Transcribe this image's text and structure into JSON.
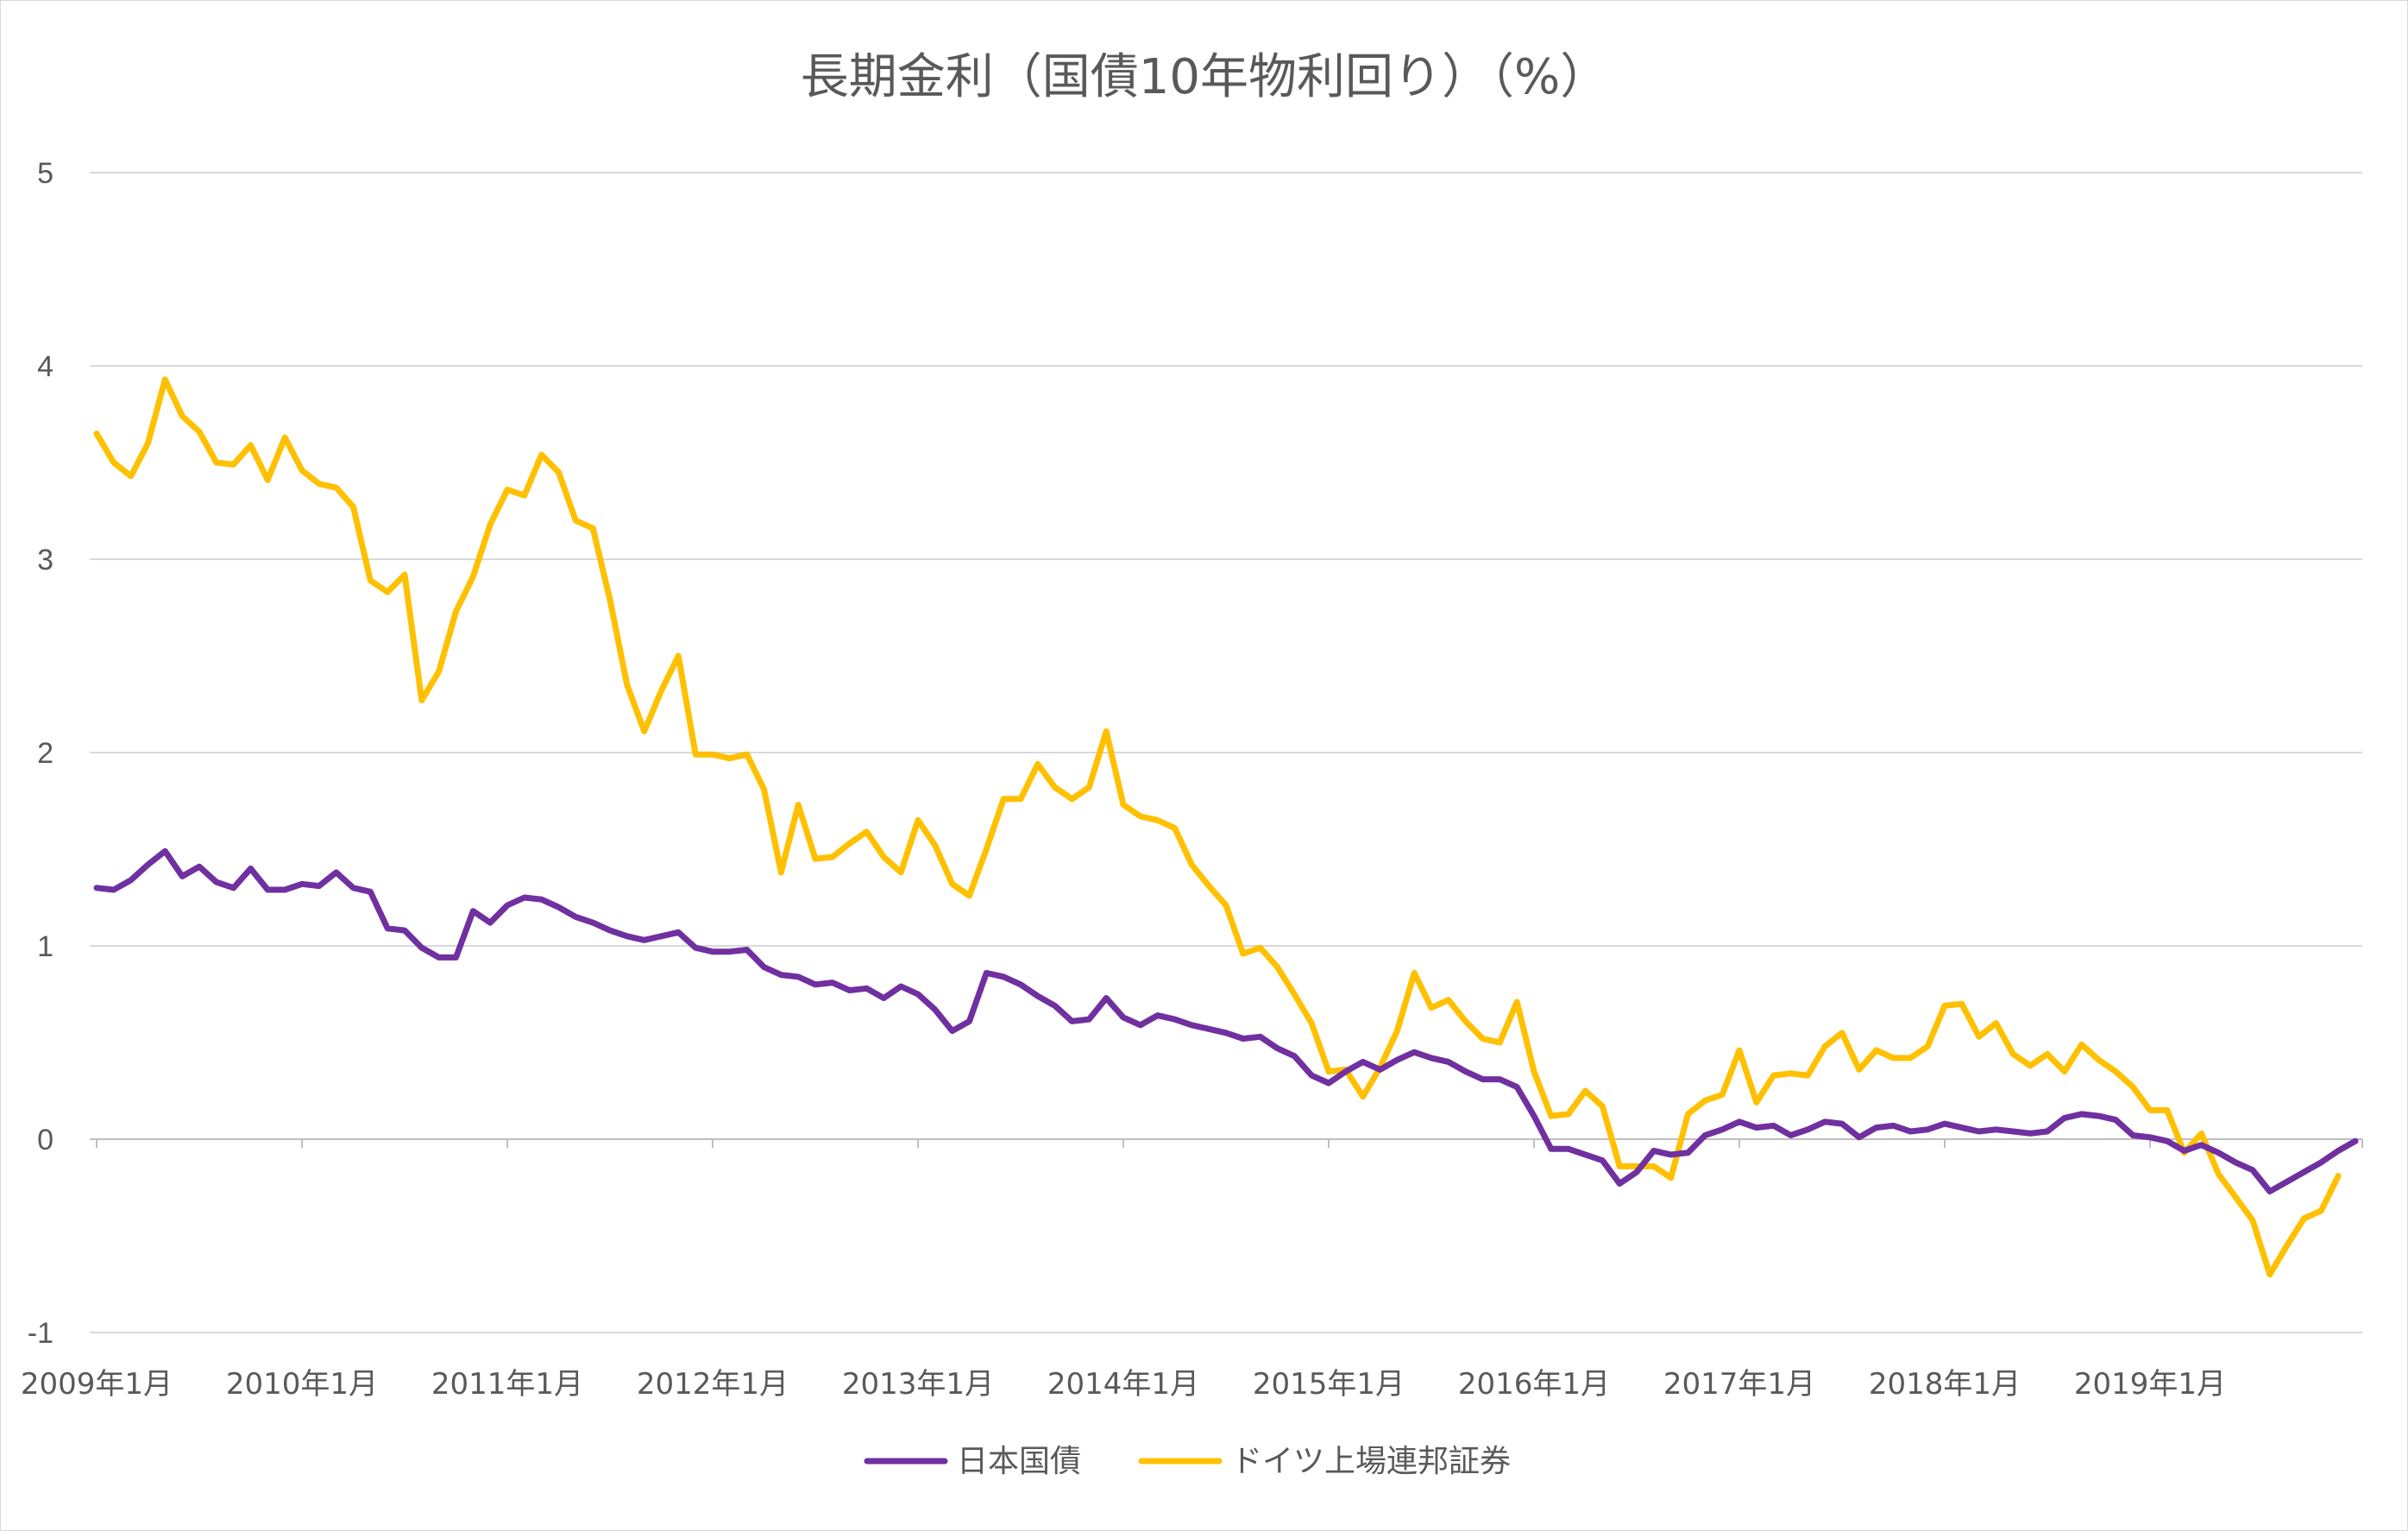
{
  "chart_data": {
    "type": "line",
    "title": "長期金利（国債10年物利回り）（%）",
    "xlabel": "",
    "ylabel": "",
    "ylim": [
      -1,
      5
    ],
    "y_ticks": [
      "5",
      "4",
      "3",
      "2",
      "1",
      "0",
      "-1"
    ],
    "x_ticks": [
      "2009年1月",
      "2010年1月",
      "2011年1月",
      "2012年1月",
      "2013年1月",
      "2014年1月",
      "2015年1月",
      "2016年1月",
      "2017年1月",
      "2018年1月",
      "2019年1月"
    ],
    "x_start": "2009年1月",
    "grid": true,
    "legend_position": "bottom",
    "series": [
      {
        "name": "日本国債",
        "color": "#7030a0",
        "values": [
          1.3,
          1.29,
          1.34,
          1.42,
          1.49,
          1.36,
          1.41,
          1.33,
          1.3,
          1.4,
          1.29,
          1.29,
          1.32,
          1.31,
          1.38,
          1.3,
          1.28,
          1.09,
          1.08,
          0.99,
          0.94,
          0.94,
          1.18,
          1.12,
          1.21,
          1.25,
          1.24,
          1.2,
          1.15,
          1.12,
          1.08,
          1.05,
          1.03,
          1.05,
          1.07,
          0.99,
          0.97,
          0.97,
          0.98,
          0.89,
          0.85,
          0.84,
          0.8,
          0.81,
          0.77,
          0.78,
          0.73,
          0.79,
          0.75,
          0.67,
          0.56,
          0.61,
          0.86,
          0.84,
          0.8,
          0.74,
          0.69,
          0.61,
          0.62,
          0.73,
          0.63,
          0.59,
          0.64,
          0.62,
          0.59,
          0.57,
          0.55,
          0.52,
          0.53,
          0.47,
          0.43,
          0.33,
          0.29,
          0.35,
          0.4,
          0.36,
          0.41,
          0.45,
          0.42,
          0.4,
          0.35,
          0.31,
          0.31,
          0.27,
          0.12,
          -0.05,
          -0.05,
          -0.08,
          -0.11,
          -0.23,
          -0.17,
          -0.06,
          -0.08,
          -0.07,
          0.02,
          0.05,
          0.09,
          0.06,
          0.07,
          0.02,
          0.05,
          0.09,
          0.08,
          0.01,
          0.06,
          0.07,
          0.04,
          0.05,
          0.08,
          0.06,
          0.04,
          0.05,
          0.04,
          0.03,
          0.04,
          0.11,
          0.13,
          0.12,
          0.1,
          0.02,
          0.01,
          -0.01,
          -0.06,
          -0.03,
          -0.07,
          -0.12,
          -0.16,
          -0.27,
          -0.22,
          -0.17,
          -0.12,
          -0.06,
          -0.01
        ]
      },
      {
        "name": "ドイツ上場連邦証券",
        "color": "#ffc000",
        "values": [
          3.65,
          3.5,
          3.43,
          3.6,
          3.93,
          3.74,
          3.66,
          3.5,
          3.49,
          3.59,
          3.41,
          3.63,
          3.46,
          3.39,
          3.37,
          3.27,
          2.89,
          2.83,
          2.92,
          2.27,
          2.42,
          2.73,
          2.91,
          3.18,
          3.36,
          3.33,
          3.54,
          3.45,
          3.2,
          3.16,
          2.79,
          2.35,
          2.11,
          2.32,
          2.5,
          1.99,
          1.99,
          1.97,
          1.99,
          1.81,
          1.38,
          1.73,
          1.45,
          1.46,
          1.53,
          1.59,
          1.46,
          1.38,
          1.65,
          1.52,
          1.32,
          1.26,
          1.5,
          1.76,
          1.76,
          1.94,
          1.82,
          1.76,
          1.82,
          2.11,
          1.73,
          1.67,
          1.65,
          1.61,
          1.42,
          1.31,
          1.21,
          0.96,
          0.99,
          0.89,
          0.75,
          0.6,
          0.35,
          0.36,
          0.22,
          0.37,
          0.56,
          0.86,
          0.68,
          0.72,
          0.61,
          0.52,
          0.5,
          0.71,
          0.35,
          0.12,
          0.13,
          0.25,
          0.17,
          -0.14,
          -0.14,
          -0.14,
          -0.2,
          0.13,
          0.2,
          0.23,
          0.46,
          0.19,
          0.33,
          0.34,
          0.33,
          0.48,
          0.55,
          0.36,
          0.46,
          0.42,
          0.42,
          0.48,
          0.69,
          0.7,
          0.53,
          0.6,
          0.44,
          0.38,
          0.44,
          0.35,
          0.49,
          0.41,
          0.35,
          0.27,
          0.15,
          0.15,
          -0.07,
          0.03,
          -0.18,
          -0.3,
          -0.42,
          -0.7,
          -0.55,
          -0.41,
          -0.37,
          -0.19
        ]
      }
    ]
  }
}
